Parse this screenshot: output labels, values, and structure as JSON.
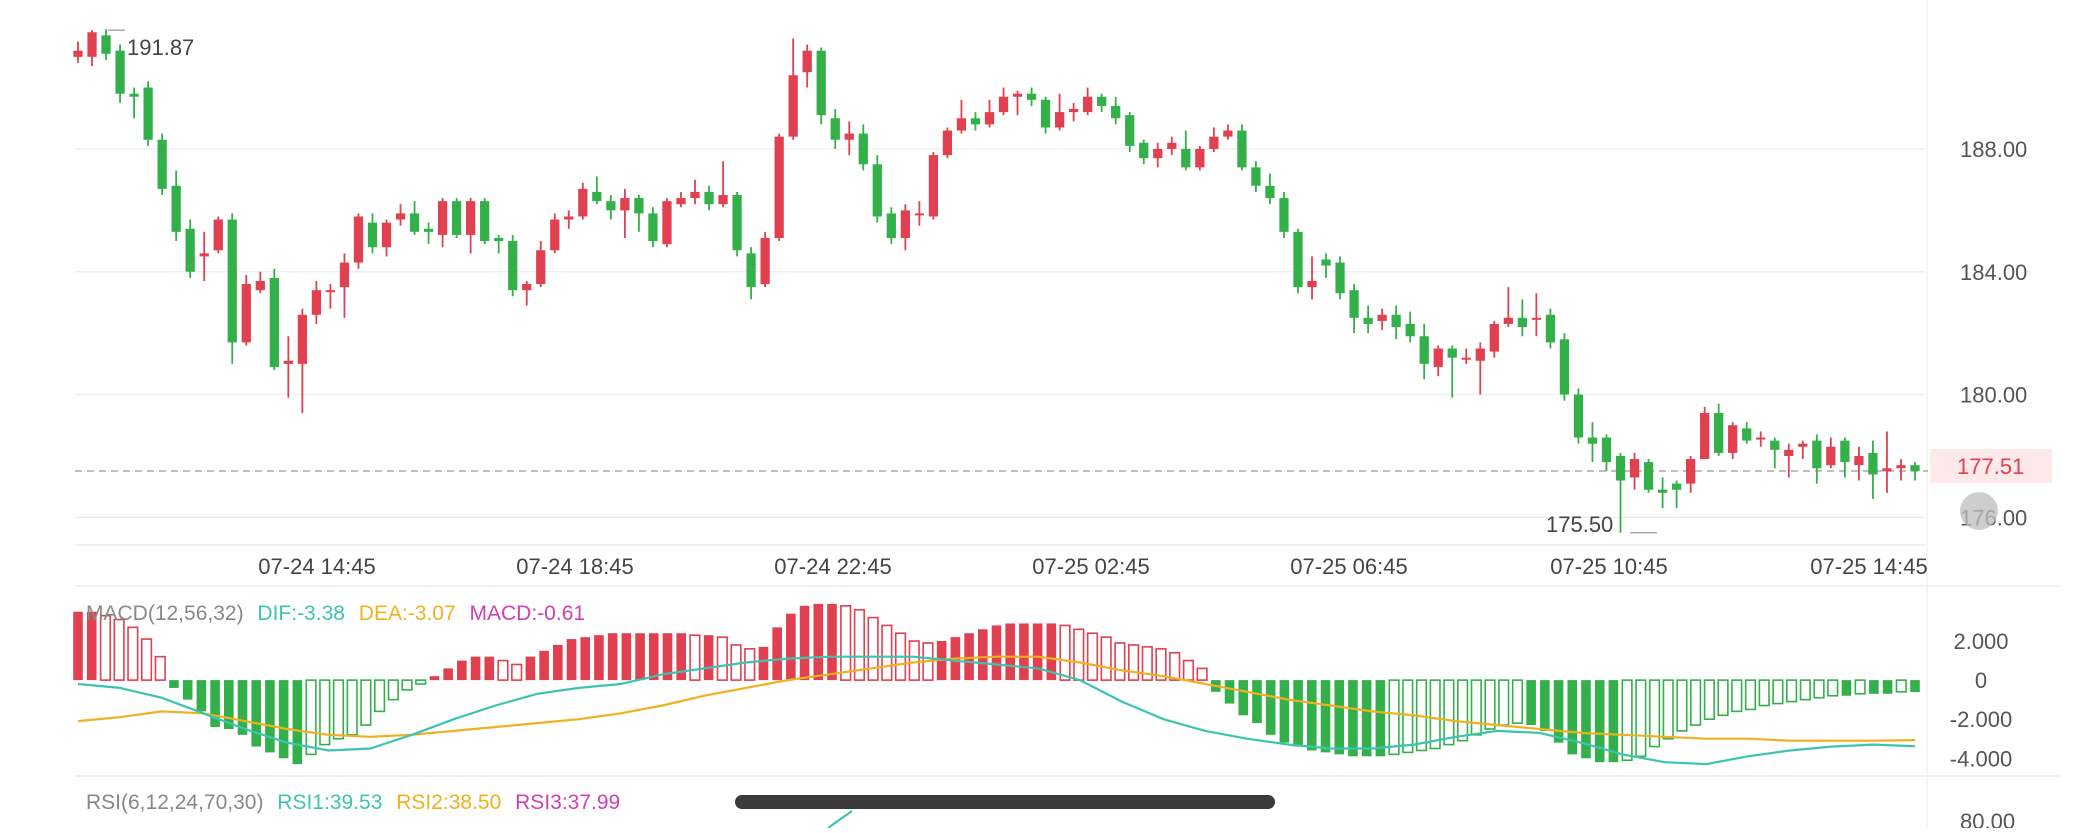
{
  "colors": {
    "up": "#e0404f",
    "down": "#33b04a",
    "grid": "#eeeeee",
    "axis_text": "#555555",
    "dif": "#3cc4b0",
    "dea": "#f0b020",
    "macd": "#d040b0",
    "last_price_bg": "#fde9ea",
    "last_price_text": "#e0404f"
  },
  "chart_data": [
    {
      "type": "candlestick",
      "x_labels": [
        "07-24 14:45",
        "07-24 18:45",
        "07-24 22:45",
        "07-25 02:45",
        "07-25 06:45",
        "07-25 10:45",
        "07-25 14:45"
      ],
      "y_ticks": [
        "188.00",
        "184.00",
        "180.00",
        "176.00"
      ],
      "ylim": [
        175.1,
        192.2
      ],
      "high_annotation": "191.87",
      "low_annotation": "175.50",
      "last_price": "177.51",
      "last_price_value": 177.51,
      "candles": [
        [
          191.0,
          191.2,
          191.5,
          190.8
        ],
        [
          191.0,
          191.8,
          191.87,
          190.7
        ],
        [
          191.7,
          191.1,
          191.9,
          190.9
        ],
        [
          191.2,
          189.8,
          191.4,
          189.5
        ],
        [
          189.8,
          189.7,
          190.0,
          189.0
        ],
        [
          190.0,
          188.3,
          190.2,
          188.1
        ],
        [
          188.3,
          186.7,
          188.5,
          186.5
        ],
        [
          186.8,
          185.3,
          187.3,
          185.0
        ],
        [
          185.4,
          184.0,
          185.7,
          183.8
        ],
        [
          184.5,
          184.6,
          185.3,
          183.7
        ],
        [
          184.7,
          185.7,
          185.8,
          184.6
        ],
        [
          185.7,
          181.7,
          185.9,
          181.0
        ],
        [
          181.7,
          183.6,
          183.9,
          181.6
        ],
        [
          183.4,
          183.7,
          184.0,
          183.3
        ],
        [
          183.8,
          180.9,
          184.1,
          180.8
        ],
        [
          181.0,
          181.1,
          181.9,
          179.9
        ],
        [
          181.0,
          182.6,
          182.8,
          179.4
        ],
        [
          182.6,
          183.4,
          183.7,
          182.3
        ],
        [
          183.4,
          183.4,
          183.6,
          182.8
        ],
        [
          183.5,
          184.3,
          184.6,
          182.5
        ],
        [
          184.3,
          185.8,
          185.9,
          184.1
        ],
        [
          185.6,
          184.8,
          185.9,
          184.6
        ],
        [
          184.8,
          185.6,
          185.7,
          184.5
        ],
        [
          185.7,
          185.9,
          186.2,
          185.5
        ],
        [
          185.9,
          185.3,
          186.3,
          185.2
        ],
        [
          185.4,
          185.3,
          185.6,
          184.9
        ],
        [
          185.2,
          186.3,
          186.4,
          184.8
        ],
        [
          186.3,
          185.2,
          186.4,
          185.1
        ],
        [
          185.2,
          186.3,
          186.4,
          184.6
        ],
        [
          186.3,
          185.0,
          186.4,
          184.9
        ],
        [
          185.1,
          185.0,
          185.2,
          184.6
        ],
        [
          185.0,
          183.4,
          185.2,
          183.2
        ],
        [
          183.4,
          183.6,
          183.7,
          182.9
        ],
        [
          183.6,
          184.7,
          185.0,
          183.5
        ],
        [
          184.7,
          185.7,
          185.9,
          184.6
        ],
        [
          185.7,
          185.8,
          186.0,
          185.4
        ],
        [
          185.8,
          186.7,
          186.9,
          185.7
        ],
        [
          186.6,
          186.3,
          187.1,
          186.2
        ],
        [
          186.3,
          186.0,
          186.5,
          185.7
        ],
        [
          186.0,
          186.4,
          186.7,
          185.1
        ],
        [
          186.4,
          185.9,
          186.5,
          185.3
        ],
        [
          185.9,
          185.0,
          186.1,
          184.8
        ],
        [
          184.9,
          186.3,
          186.4,
          184.8
        ],
        [
          186.2,
          186.4,
          186.6,
          186.1
        ],
        [
          186.4,
          186.6,
          187.0,
          186.2
        ],
        [
          186.6,
          186.2,
          186.8,
          186.0
        ],
        [
          186.2,
          186.5,
          187.6,
          186.1
        ],
        [
          186.5,
          184.7,
          186.6,
          184.5
        ],
        [
          184.6,
          183.5,
          184.8,
          183.1
        ],
        [
          183.6,
          185.1,
          185.3,
          183.5
        ],
        [
          185.1,
          188.4,
          188.5,
          185.0
        ],
        [
          188.4,
          190.4,
          191.6,
          188.3
        ],
        [
          190.5,
          191.2,
          191.4,
          190.0
        ],
        [
          191.2,
          189.1,
          191.3,
          188.8
        ],
        [
          189.0,
          188.3,
          189.3,
          188.0
        ],
        [
          188.3,
          188.5,
          188.9,
          187.8
        ],
        [
          188.5,
          187.5,
          188.8,
          187.3
        ],
        [
          187.5,
          185.8,
          187.8,
          185.6
        ],
        [
          185.9,
          185.1,
          186.1,
          184.9
        ],
        [
          185.1,
          186.0,
          186.2,
          184.7
        ],
        [
          185.9,
          185.9,
          186.3,
          185.5
        ],
        [
          185.8,
          187.8,
          187.9,
          185.7
        ],
        [
          187.8,
          188.6,
          188.7,
          187.7
        ],
        [
          188.6,
          189.0,
          189.6,
          188.5
        ],
        [
          189.0,
          188.8,
          189.2,
          188.6
        ],
        [
          188.8,
          189.2,
          189.6,
          188.7
        ],
        [
          189.2,
          189.7,
          190.0,
          189.1
        ],
        [
          189.7,
          189.8,
          189.9,
          189.1
        ],
        [
          189.8,
          189.6,
          190.0,
          189.4
        ],
        [
          189.6,
          188.7,
          189.7,
          188.5
        ],
        [
          188.7,
          189.2,
          189.8,
          188.6
        ],
        [
          189.2,
          189.3,
          189.5,
          188.9
        ],
        [
          189.2,
          189.7,
          190.0,
          189.1
        ],
        [
          189.7,
          189.4,
          189.8,
          189.2
        ],
        [
          189.4,
          189.0,
          189.7,
          188.8
        ],
        [
          189.1,
          188.1,
          189.2,
          187.9
        ],
        [
          188.2,
          187.7,
          188.3,
          187.5
        ],
        [
          187.7,
          188.0,
          188.2,
          187.4
        ],
        [
          188.0,
          188.2,
          188.4,
          187.8
        ],
        [
          188.0,
          187.4,
          188.6,
          187.3
        ],
        [
          187.4,
          188.0,
          188.1,
          187.3
        ],
        [
          188.0,
          188.4,
          188.7,
          187.9
        ],
        [
          188.4,
          188.6,
          188.8,
          188.3
        ],
        [
          188.6,
          187.4,
          188.8,
          187.3
        ],
        [
          187.4,
          186.8,
          187.6,
          186.6
        ],
        [
          186.8,
          186.4,
          187.2,
          186.2
        ],
        [
          186.4,
          185.3,
          186.6,
          185.1
        ],
        [
          185.3,
          183.5,
          185.4,
          183.3
        ],
        [
          183.5,
          183.7,
          184.5,
          183.1
        ],
        [
          184.4,
          184.2,
          184.6,
          183.8
        ],
        [
          184.3,
          183.3,
          184.5,
          183.1
        ],
        [
          183.4,
          182.5,
          183.6,
          182.0
        ],
        [
          182.5,
          182.3,
          182.9,
          182.0
        ],
        [
          182.4,
          182.6,
          182.8,
          182.1
        ],
        [
          182.6,
          182.2,
          182.9,
          181.8
        ],
        [
          182.3,
          181.9,
          182.7,
          181.7
        ],
        [
          181.9,
          181.0,
          182.3,
          180.5
        ],
        [
          180.9,
          181.5,
          181.6,
          180.6
        ],
        [
          181.5,
          181.2,
          181.6,
          179.9
        ],
        [
          181.2,
          181.2,
          181.5,
          181.0
        ],
        [
          181.1,
          181.5,
          181.7,
          180.0
        ],
        [
          181.4,
          182.3,
          182.4,
          181.2
        ],
        [
          182.3,
          182.5,
          183.5,
          182.2
        ],
        [
          182.5,
          182.2,
          183.1,
          181.9
        ],
        [
          182.5,
          182.5,
          183.3,
          181.9
        ],
        [
          182.6,
          181.7,
          182.8,
          181.5
        ],
        [
          181.8,
          180.0,
          182.0,
          179.8
        ],
        [
          180.0,
          178.6,
          180.2,
          178.4
        ],
        [
          178.6,
          178.4,
          179.1,
          177.8
        ],
        [
          178.6,
          177.8,
          178.7,
          177.5
        ],
        [
          178.0,
          177.2,
          178.1,
          175.5
        ],
        [
          177.3,
          177.9,
          178.1,
          176.9
        ],
        [
          177.8,
          176.9,
          177.9,
          176.8
        ],
        [
          176.9,
          176.8,
          177.3,
          176.3
        ],
        [
          177.1,
          176.9,
          177.2,
          176.3
        ],
        [
          177.1,
          177.9,
          178.0,
          176.8
        ],
        [
          177.9,
          179.4,
          179.6,
          177.9
        ],
        [
          179.4,
          178.1,
          179.7,
          178.0
        ],
        [
          178.1,
          179.0,
          179.1,
          177.9
        ],
        [
          178.9,
          178.5,
          179.1,
          178.4
        ],
        [
          178.6,
          178.6,
          178.8,
          178.3
        ],
        [
          178.5,
          178.2,
          178.6,
          177.6
        ],
        [
          178.0,
          178.2,
          178.4,
          177.3
        ],
        [
          178.3,
          178.4,
          178.5,
          177.9
        ],
        [
          178.5,
          177.6,
          178.7,
          177.1
        ],
        [
          177.7,
          178.3,
          178.6,
          177.6
        ],
        [
          178.5,
          177.8,
          178.6,
          177.3
        ],
        [
          177.7,
          178.0,
          178.3,
          177.2
        ],
        [
          178.1,
          177.4,
          178.5,
          176.6
        ],
        [
          177.5,
          177.6,
          178.8,
          176.8
        ],
        [
          177.6,
          177.7,
          177.9,
          177.2
        ],
        [
          177.7,
          177.51,
          177.8,
          177.2
        ]
      ]
    },
    {
      "type": "macd",
      "title": "MACD(12,56,32)",
      "dif_label": "DIF:-3.38",
      "dea_label": "DEA:-3.07",
      "macd_label": "MACD:-0.61",
      "y_ticks": [
        "2.000",
        "0",
        "-2.000",
        "-4.000"
      ],
      "ylim": [
        -4.6,
        4.1
      ],
      "dif": [
        -0.2,
        -0.4,
        -0.9,
        -1.7,
        -2.5,
        -3.2,
        -3.6,
        -3.5,
        -2.8,
        -2.0,
        -1.3,
        -0.7,
        -0.4,
        -0.2,
        0.3,
        0.6,
        0.9,
        1.1,
        1.2,
        1.2,
        1.2,
        1.0,
        0.8,
        0.6,
        0.0,
        -1.1,
        -2.0,
        -2.6,
        -3.0,
        -3.3,
        -3.5,
        -3.5,
        -3.3,
        -2.9,
        -2.6,
        -2.7,
        -3.2,
        -3.8,
        -4.2,
        -4.3,
        -3.9,
        -3.6,
        -3.4,
        -3.3,
        -3.38
      ],
      "dea": [
        -2.1,
        -1.9,
        -1.6,
        -1.7,
        -2.1,
        -2.5,
        -2.8,
        -2.9,
        -2.8,
        -2.6,
        -2.4,
        -2.2,
        -2.0,
        -1.7,
        -1.3,
        -0.8,
        -0.4,
        0.0,
        0.3,
        0.6,
        0.9,
        1.1,
        1.2,
        1.2,
        0.9,
        0.5,
        0.2,
        -0.2,
        -0.6,
        -1.0,
        -1.3,
        -1.6,
        -1.8,
        -2.1,
        -2.3,
        -2.5,
        -2.7,
        -2.8,
        -2.9,
        -3.0,
        -3.0,
        -3.1,
        -3.1,
        -3.1,
        -3.07
      ],
      "histogram": [
        3.5,
        3.5,
        3.3,
        3.1,
        2.7,
        2.1,
        1.2,
        -0.4,
        -1.0,
        -1.6,
        -2.4,
        -2.5,
        -2.8,
        -3.4,
        -3.7,
        -4.0,
        -4.3,
        -3.8,
        -3.3,
        -3.0,
        -2.8,
        -2.3,
        -1.6,
        -1.0,
        -0.5,
        -0.2,
        0.2,
        0.6,
        1.0,
        1.2,
        1.2,
        1.0,
        0.8,
        1.2,
        1.5,
        1.8,
        2.1,
        2.2,
        2.3,
        2.4,
        2.4,
        2.4,
        2.4,
        2.4,
        2.4,
        2.3,
        2.3,
        2.2,
        1.8,
        1.6,
        1.7,
        2.7,
        3.4,
        3.8,
        3.9,
        3.9,
        3.8,
        3.6,
        3.2,
        2.8,
        2.4,
        2.0,
        1.9,
        2.0,
        2.2,
        2.4,
        2.6,
        2.8,
        2.9,
        2.9,
        2.9,
        2.9,
        2.8,
        2.6,
        2.4,
        2.2,
        1.9,
        1.8,
        1.7,
        1.6,
        1.4,
        1.0,
        0.6,
        -0.6,
        -1.2,
        -1.8,
        -2.2,
        -2.8,
        -3.2,
        -3.4,
        -3.6,
        -3.7,
        -3.8,
        -3.9,
        -3.9,
        -3.9,
        -3.8,
        -3.7,
        -3.6,
        -3.5,
        -3.3,
        -3.1,
        -2.8,
        -2.5,
        -2.3,
        -2.2,
        -2.3,
        -2.6,
        -3.2,
        -3.8,
        -4.0,
        -4.2,
        -4.2,
        -4.1,
        -3.9,
        -3.4,
        -3.0,
        -2.6,
        -2.3,
        -2.0,
        -1.8,
        -1.6,
        -1.5,
        -1.3,
        -1.2,
        -1.1,
        -1.0,
        -0.9,
        -0.8,
        -0.8,
        -0.7,
        -0.7,
        -0.7,
        -0.6,
        -0.61
      ]
    },
    {
      "type": "line",
      "title": "RSI(6,12,24,70,30)",
      "rsi1_label": "RSI1:39.53",
      "rsi2_label": "RSI2:38.50",
      "rsi3_label": "RSI3:37.99",
      "y_ticks": [
        "80.00"
      ]
    }
  ]
}
